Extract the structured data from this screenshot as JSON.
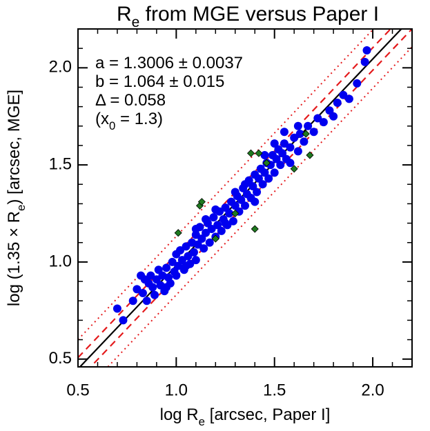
{
  "chart_data": {
    "type": "scatter",
    "title": [
      "R",
      "e",
      " from MGE versus Paper I"
    ],
    "xlabel": [
      "log R",
      "e",
      " [arcsec, Paper I]"
    ],
    "ylabel": [
      "log (1.35 × R",
      "e",
      ") [arcsec, MGE]"
    ],
    "annotations": [
      [
        "a = 1.3006 ± 0.0037"
      ],
      [
        "b = 1.064 ± 0.015"
      ],
      [
        "Δ = 0.058"
      ],
      [
        "(x",
        "0",
        " = 1.3)"
      ]
    ],
    "xlim": [
      0.5,
      2.2
    ],
    "ylim": [
      0.46,
      2.2
    ],
    "xticks": [
      0.5,
      {
        "value": 1,
        "label": "1.0"
      },
      1.5,
      {
        "value": 2,
        "label": "2.0"
      }
    ],
    "yticks": [
      0.5,
      {
        "value": 1,
        "label": "1.0"
      },
      1.5,
      {
        "value": 2,
        "label": "2.0"
      }
    ],
    "xminor": [
      0.6,
      0.7,
      0.8,
      0.9,
      1.1,
      1.2,
      1.3,
      1.4,
      1.6,
      1.7,
      1.8,
      1.9,
      2.1
    ],
    "yminor": [
      0.6,
      0.7,
      0.8,
      0.9,
      1.1,
      1.2,
      1.3,
      1.4,
      1.6,
      1.7,
      1.8,
      1.9,
      2.1
    ],
    "fit": {
      "a": 1.3006,
      "b": 1.064,
      "x0": 1.3,
      "delta": 0.058,
      "outer_multiple": 2.6
    },
    "series": [
      {
        "color": "#0000ee",
        "marker": "circle",
        "x": [
          0.7,
          0.73,
          0.78,
          0.8,
          0.82,
          0.83,
          0.84,
          0.85,
          0.86,
          0.87,
          0.88,
          0.89,
          0.9,
          0.91,
          0.92,
          0.93,
          0.94,
          0.95,
          0.96,
          0.97,
          0.98,
          0.99,
          1.0,
          1.0,
          1.01,
          1.02,
          1.03,
          1.04,
          1.05,
          1.06,
          1.07,
          1.08,
          1.09,
          1.1,
          1.1,
          1.11,
          1.12,
          1.13,
          1.14,
          1.15,
          1.16,
          1.17,
          1.18,
          1.19,
          1.2,
          1.21,
          1.22,
          1.23,
          1.24,
          1.25,
          1.26,
          1.27,
          1.28,
          1.29,
          1.3,
          1.31,
          1.32,
          1.33,
          1.34,
          1.35,
          1.36,
          1.37,
          1.38,
          1.39,
          1.4,
          1.41,
          1.42,
          1.43,
          1.44,
          1.45,
          1.46,
          1.47,
          1.48,
          1.49,
          1.5,
          1.51,
          1.52,
          1.53,
          1.54,
          1.55,
          1.56,
          1.58,
          1.6,
          1.62,
          1.63,
          1.65,
          1.67,
          1.7,
          1.72,
          1.75,
          1.78,
          1.8,
          1.82,
          1.85,
          1.88,
          1.92,
          1.96,
          1.97,
          1.35,
          1.3,
          1.25,
          1.2,
          1.15,
          1.4,
          1.45,
          1.5,
          1.58,
          1.62,
          1.1,
          1.05,
          0.95,
          1.55
        ],
        "values": [
          0.76,
          0.7,
          0.8,
          0.86,
          0.93,
          0.84,
          0.91,
          0.8,
          0.89,
          0.93,
          0.87,
          0.83,
          0.91,
          0.96,
          0.88,
          0.93,
          0.85,
          0.97,
          0.92,
          0.89,
          1.0,
          0.95,
          1.04,
          0.93,
          0.98,
          1.06,
          1.01,
          0.96,
          1.08,
          1.03,
          0.99,
          1.1,
          1.05,
          1.14,
          1.01,
          1.09,
          1.18,
          1.12,
          1.07,
          1.15,
          1.2,
          1.1,
          1.17,
          1.23,
          1.13,
          1.19,
          1.26,
          1.16,
          1.22,
          1.28,
          1.19,
          1.25,
          1.31,
          1.21,
          1.29,
          1.34,
          1.26,
          1.32,
          1.38,
          1.29,
          1.35,
          1.42,
          1.33,
          1.39,
          1.45,
          1.36,
          1.43,
          1.48,
          1.4,
          1.46,
          1.51,
          1.43,
          1.5,
          1.55,
          1.46,
          1.53,
          1.58,
          1.5,
          1.56,
          1.61,
          1.53,
          1.59,
          1.64,
          1.57,
          1.66,
          1.62,
          1.7,
          1.67,
          1.74,
          1.72,
          1.78,
          1.75,
          1.82,
          1.86,
          1.84,
          1.92,
          2.03,
          2.09,
          1.4,
          1.36,
          1.2,
          1.27,
          1.22,
          1.31,
          1.55,
          1.61,
          1.51,
          1.7,
          1.17,
          0.98,
          0.87,
          1.67
        ]
      },
      {
        "color": "#1f7a1f",
        "marker": "diamond",
        "x": [
          1.01,
          1.12,
          1.13,
          1.38,
          1.42,
          1.4,
          1.46,
          1.6,
          1.66,
          1.68,
          1.2,
          1.3
        ],
        "values": [
          1.15,
          1.29,
          1.31,
          1.56,
          1.56,
          1.17,
          1.51,
          1.48,
          1.66,
          1.55,
          1.12,
          1.25
        ]
      }
    ]
  }
}
